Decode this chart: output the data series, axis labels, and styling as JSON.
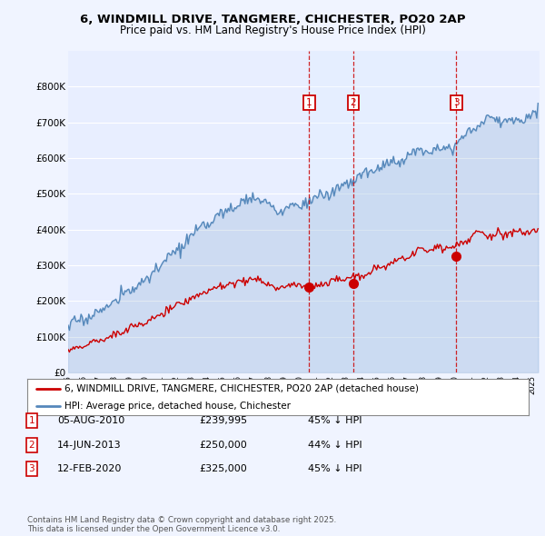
{
  "title": "6, WINDMILL DRIVE, TANGMERE, CHICHESTER, PO20 2AP",
  "subtitle": "Price paid vs. HM Land Registry's House Price Index (HPI)",
  "ylim": [
    0,
    900000
  ],
  "yticks": [
    0,
    100000,
    200000,
    300000,
    400000,
    500000,
    600000,
    700000,
    800000
  ],
  "ytick_labels": [
    "£0",
    "£100K",
    "£200K",
    "£300K",
    "£400K",
    "£500K",
    "£600K",
    "£700K",
    "£800K"
  ],
  "xlim_start": 1995.0,
  "xlim_end": 2025.5,
  "bg_color": "#f0f4ff",
  "plot_bg_color": "#e8eeff",
  "grid_color": "#ffffff",
  "sale_color": "#cc0000",
  "hpi_color": "#5588bb",
  "hpi_fill_color": "#ddeeff",
  "sale_dates": [
    2010.59,
    2013.45,
    2020.12
  ],
  "sale_prices": [
    239995,
    250000,
    325000
  ],
  "sale_labels": [
    "1",
    "2",
    "3"
  ],
  "legend_sale_label": "6, WINDMILL DRIVE, TANGMERE, CHICHESTER, PO20 2AP (detached house)",
  "legend_hpi_label": "HPI: Average price, detached house, Chichester",
  "table_rows": [
    [
      "1",
      "05-AUG-2010",
      "£239,995",
      "45% ↓ HPI"
    ],
    [
      "2",
      "14-JUN-2013",
      "£250,000",
      "44% ↓ HPI"
    ],
    [
      "3",
      "12-FEB-2020",
      "£325,000",
      "45% ↓ HPI"
    ]
  ],
  "footer": "Contains HM Land Registry data © Crown copyright and database right 2025.\nThis data is licensed under the Open Government Licence v3.0.",
  "title_fontsize": 9.5,
  "subtitle_fontsize": 8.5,
  "axis_fontsize": 7.5,
  "legend_fontsize": 7.5,
  "table_fontsize": 8
}
